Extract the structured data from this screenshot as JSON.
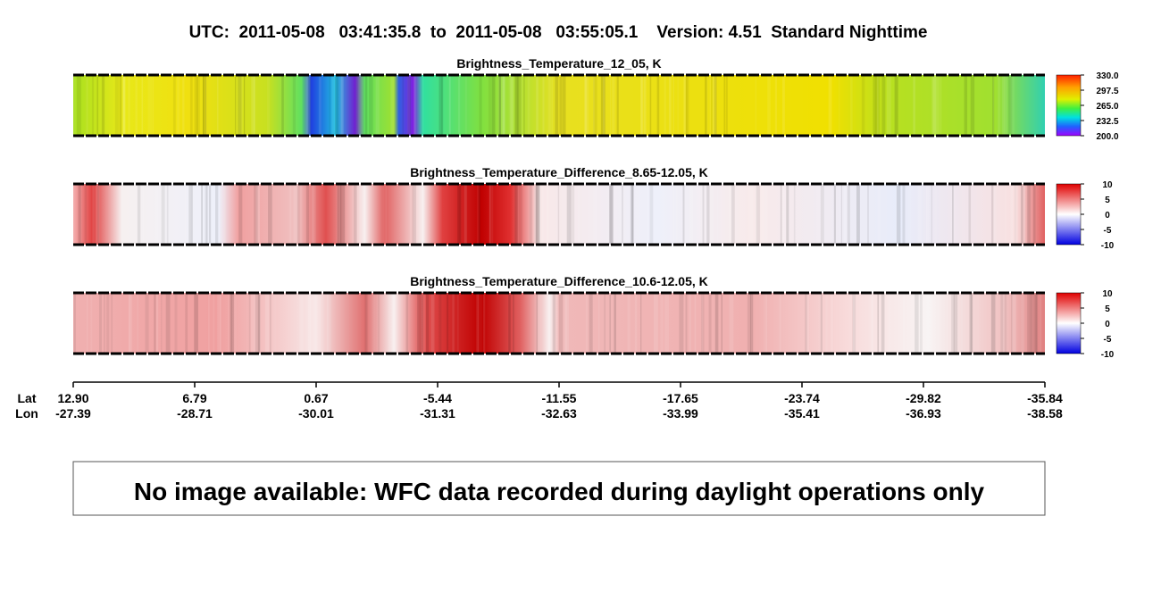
{
  "header": {
    "title": "UTC:  2011-05-08   03:41:35.8  to  2011-05-08   03:55:05.1    Version: 4.51  Standard Nighttime"
  },
  "panels": [
    {
      "title": "Brightness_Temperature_12_05, K",
      "colorbar": [
        "330.0",
        "297.5",
        "265.0",
        "232.5",
        "200.0"
      ]
    },
    {
      "title": "Brightness_Temperature_Difference_8.65-12.05, K",
      "colorbar": [
        "10",
        "5",
        "0",
        "-5",
        "-10"
      ]
    },
    {
      "title": "Brightness_Temperature_Difference_10.6-12.05, K",
      "colorbar": [
        "10",
        "5",
        "0",
        "-5",
        "-10"
      ]
    }
  ],
  "axis": {
    "lat_label": "Lat",
    "lon_label": "Lon",
    "lat": [
      "12.90",
      "6.79",
      "0.67",
      "-5.44",
      "-11.55",
      "-17.65",
      "-23.74",
      "-29.82",
      "-35.84"
    ],
    "lon": [
      "-27.39",
      "-28.71",
      "-30.01",
      "-31.31",
      "-32.63",
      "-33.99",
      "-35.41",
      "-36.93",
      "-38.58"
    ]
  },
  "notice": "No image available: WFC data recorded during daylight operations only"
}
